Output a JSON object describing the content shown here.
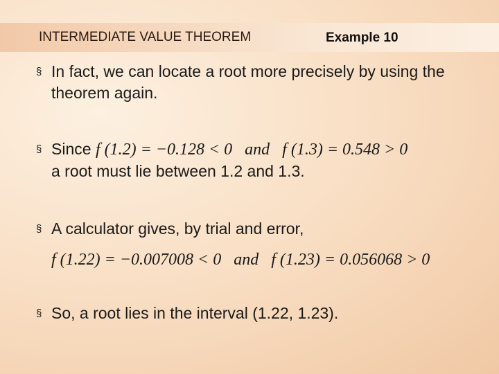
{
  "header": {
    "title": "INTERMEDIATE VALUE THEOREM",
    "subtitle": "Example 10"
  },
  "bullets": [
    {
      "text": "In fact, we can locate a root more precisely by using the theorem again."
    },
    {
      "text": "Since",
      "formula": "f (1.2) = −0.128 < 0   and   f (1.3) = 0.548 > 0",
      "text2": "a root must lie between 1.2 and 1.3."
    },
    {
      "text": "A calculator gives, by trial and error,",
      "formula": "f (1.22) = −0.007008 < 0   and   f (1.23) = 0.056068 > 0"
    },
    {
      "text": "So, a root lies in the interval (1.22, 1.23)."
    }
  ]
}
